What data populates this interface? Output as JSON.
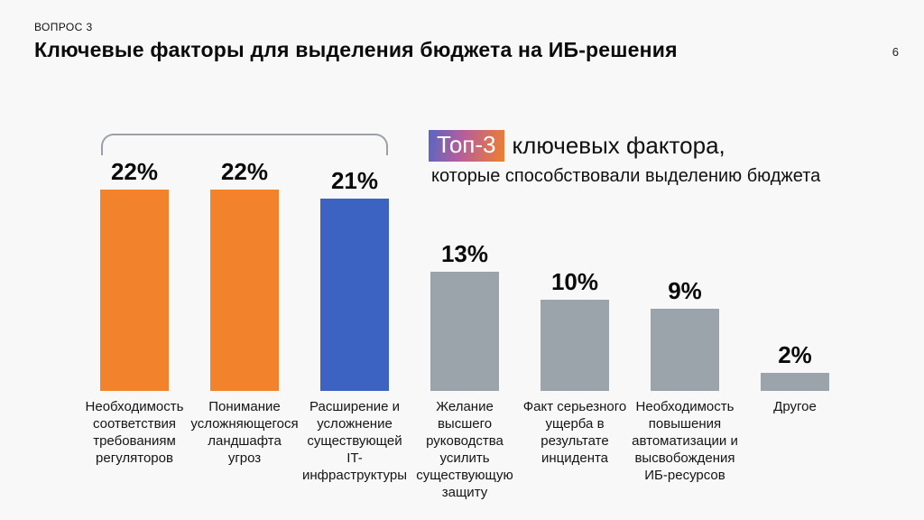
{
  "page": {
    "background": "#f8f8f8"
  },
  "header": {
    "kicker": "ВОПРОС 3",
    "title": "Ключевые факторы для выделения бюджета на ИБ-решения",
    "page_number": "6"
  },
  "legend": {
    "badge": "Топ-3",
    "line1": "ключевых фактора,",
    "line2": "которые способствовали выделению бюджета",
    "badge_gradient": [
      "#5766c3",
      "#b85e9a",
      "#ef7f2e"
    ]
  },
  "chart_data": {
    "type": "bar",
    "title": "Топ-3 ключевых фактора, которые способствовали выделению бюджета",
    "categories": [
      "Необходимость соответствия требованиям регуляторов",
      "Понимание усложняющегося ландшафта угроз",
      "Расширение и усложнение существующей IT-инфраструктуры",
      "Желание высшего руководства усилить существующую защиту",
      "Факт серьезного ущерба в результате инцидента",
      "Необходимость повышения автоматизации и высвобождения ИБ-ресурсов",
      "Другое"
    ],
    "values": [
      22,
      22,
      21,
      13,
      10,
      9,
      2
    ],
    "value_labels": [
      "22%",
      "22%",
      "21%",
      "13%",
      "10%",
      "9%",
      "2%"
    ],
    "bar_colors": [
      "#f2822c",
      "#f2822c",
      "#3d63c2",
      "#9ba4ab",
      "#9ba4ab",
      "#9ba4ab",
      "#9ba4ab"
    ],
    "highlight_colors": {
      "orange": "#f2822c",
      "blue": "#3d63c2",
      "gray": "#9ba4ab"
    },
    "xlabel": "",
    "ylabel": "",
    "ylim": [
      0,
      25
    ],
    "grid": false,
    "legend_position": "top-right",
    "annotation": "Bracket groups the first three bars as the Top-3 factors"
  }
}
